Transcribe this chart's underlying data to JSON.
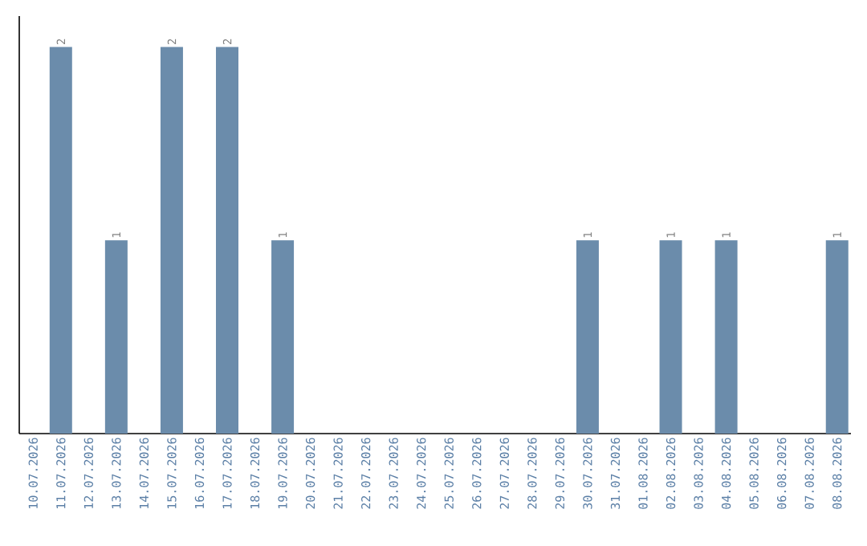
{
  "chart_data": {
    "type": "bar",
    "categories": [
      "10.07.2026",
      "11.07.2026",
      "12.07.2026",
      "13.07.2026",
      "14.07.2026",
      "15.07.2026",
      "16.07.2026",
      "17.07.2026",
      "18.07.2026",
      "19.07.2026",
      "20.07.2026",
      "21.07.2026",
      "22.07.2026",
      "23.07.2026",
      "24.07.2026",
      "25.07.2026",
      "26.07.2026",
      "27.07.2026",
      "28.07.2026",
      "29.07.2026",
      "30.07.2026",
      "31.07.2026",
      "01.08.2026",
      "02.08.2026",
      "03.08.2026",
      "04.08.2026",
      "05.08.2026",
      "06.08.2026",
      "07.08.2026",
      "08.08.2026"
    ],
    "values": [
      0,
      2,
      0,
      1,
      0,
      2,
      0,
      2,
      0,
      1,
      0,
      0,
      0,
      0,
      0,
      0,
      0,
      0,
      0,
      0,
      1,
      0,
      0,
      1,
      0,
      1,
      0,
      0,
      0,
      1
    ],
    "value_labels": [
      null,
      "2",
      null,
      "1",
      null,
      "2",
      null,
      "2",
      null,
      "1",
      null,
      null,
      null,
      null,
      null,
      null,
      null,
      null,
      null,
      null,
      "1",
      null,
      null,
      "1",
      null,
      "1",
      null,
      null,
      null,
      "1"
    ],
    "color": "#6b8cab"
  }
}
